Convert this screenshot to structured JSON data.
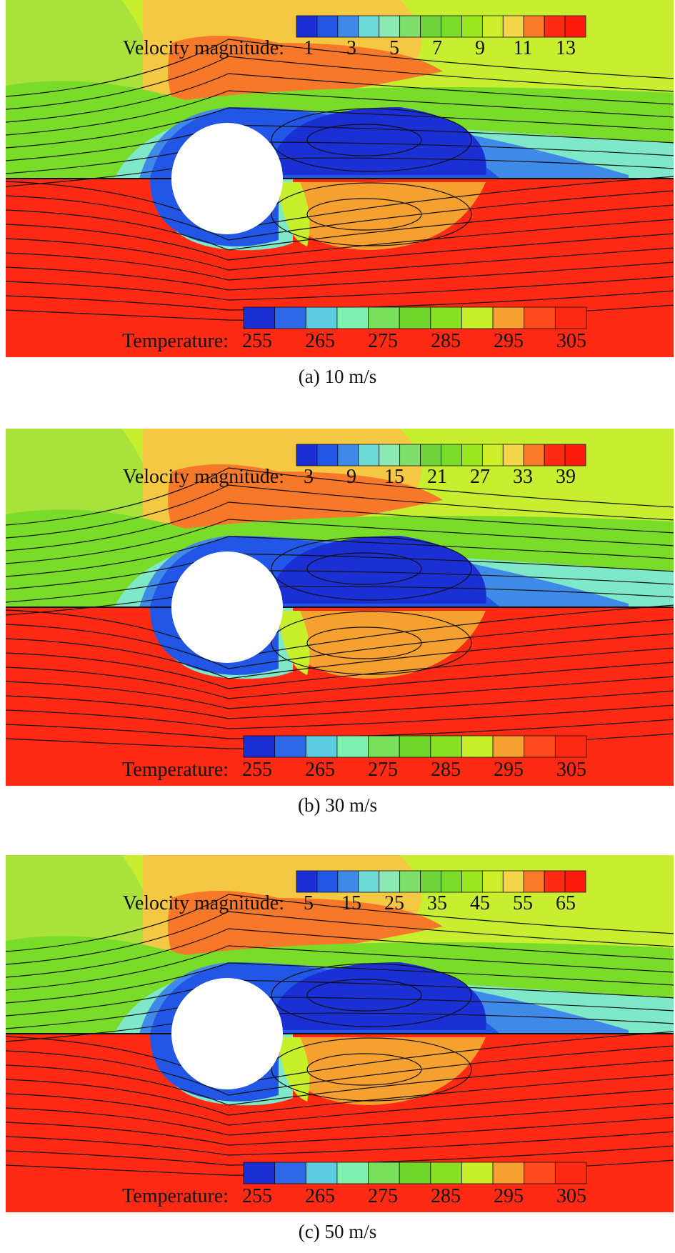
{
  "colorbars": {
    "velocity": {
      "colors": [
        "#1a2fd4",
        "#2156e6",
        "#3f8ae8",
        "#6fdbd8",
        "#8cebb5",
        "#7ee06a",
        "#6fd43a",
        "#78dc28",
        "#9ae81e",
        "#cdf02a",
        "#f4d64a",
        "#fa7a2a",
        "#ff2a14",
        "#ff1a10"
      ]
    },
    "temperature": {
      "colors": [
        "#1a2fd4",
        "#2e68e8",
        "#5ccde0",
        "#7ef0b0",
        "#78e05a",
        "#6fd62a",
        "#88e022",
        "#c8f02a",
        "#f6a030",
        "#ff4a1e",
        "#ff2a14"
      ]
    }
  },
  "flow_colors": {
    "outer_green": "#a8e23a",
    "lime": "#c8ee30",
    "yellow_orange": "#f4c842",
    "orange": "#f8782a",
    "green_mid": "#78dc28",
    "cyan": "#7ee8c8",
    "blue_light": "#3f8ae8",
    "blue_mid": "#2156e6",
    "blue_dark": "#1a2fd4",
    "red": "#ff2a14",
    "cylinder": "#ffffff"
  },
  "panels": [
    {
      "caption": "(a) 10 m/s",
      "velocity_label": "Velocity magnitude:",
      "velocity_ticks": [
        "1",
        "3",
        "5",
        "7",
        "9",
        "11",
        "13"
      ],
      "temperature_label": "Temperature:",
      "temperature_ticks": [
        "255",
        "265",
        "275",
        "285",
        "295",
        "305"
      ]
    },
    {
      "caption": "(b) 30 m/s",
      "velocity_label": "Velocity magnitude:",
      "velocity_ticks": [
        "3",
        "9",
        "15",
        "21",
        "27",
        "33",
        "39"
      ],
      "temperature_label": "Temperature:",
      "temperature_ticks": [
        "255",
        "265",
        "275",
        "285",
        "295",
        "305"
      ]
    },
    {
      "caption": "(c) 50 m/s",
      "velocity_label": "Velocity magnitude:",
      "velocity_ticks": [
        "5",
        "15",
        "25",
        "35",
        "45",
        "55",
        "65"
      ],
      "temperature_label": "Temperature:",
      "temperature_ticks": [
        "255",
        "265",
        "275",
        "285",
        "295",
        "305"
      ]
    }
  ]
}
